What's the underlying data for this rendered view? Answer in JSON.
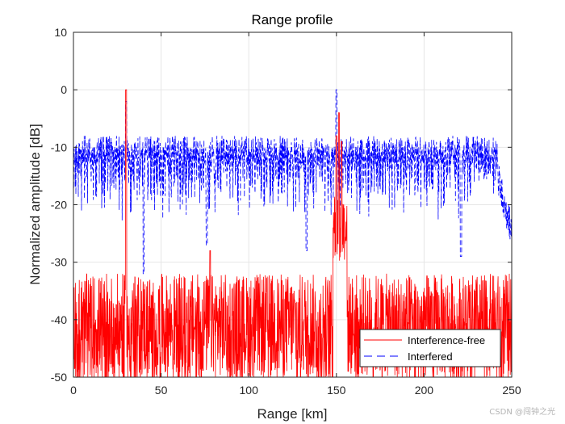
{
  "chart_data": {
    "type": "line",
    "title": "Range profile",
    "xlabel": "Range [km]",
    "ylabel": "Normalized amplitude [dB]",
    "xlim": [
      0,
      250
    ],
    "ylim": [
      -50,
      10
    ],
    "xticks": [
      0,
      50,
      100,
      150,
      200,
      250
    ],
    "yticks": [
      10,
      0,
      -10,
      -20,
      -30,
      -40,
      -50
    ],
    "grid": true,
    "legend_position": "bottom-right",
    "series": [
      {
        "name": "Interference-free",
        "color": "#ff0000",
        "style": "solid",
        "baseline_db": -41,
        "noise_spread_db": 9,
        "floor_db": -50,
        "peaks": [
          {
            "range_km": 30,
            "value_db": 0
          },
          {
            "range_km": 78,
            "value_db": -28
          },
          {
            "range_km": 150,
            "value_db": -8
          },
          {
            "range_km": 151.5,
            "value_db": -4
          },
          {
            "range_km": 153,
            "value_db": -9
          }
        ]
      },
      {
        "name": "Interfered",
        "color": "#0000ff",
        "style": "dashed",
        "upper_envelope_db": -10,
        "lower_envelope_db": -23,
        "deep_nulls": [
          {
            "range_km": 40,
            "value_db": -32
          },
          {
            "range_km": 76,
            "value_db": -27
          },
          {
            "range_km": 133,
            "value_db": -28
          },
          {
            "range_km": 221,
            "value_db": -29
          },
          {
            "range_km": 248,
            "value_db": -27
          }
        ],
        "peaks": [
          {
            "range_km": 30,
            "value_db": -2
          },
          {
            "range_km": 150,
            "value_db": 0
          },
          {
            "range_km": 233,
            "value_db": -8
          }
        ]
      }
    ]
  },
  "watermark": "CSDN @闯钟之光"
}
